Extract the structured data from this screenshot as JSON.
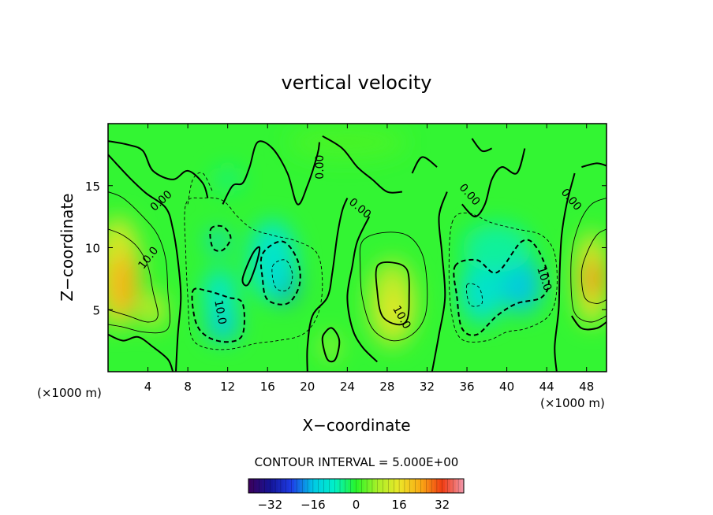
{
  "chart_data": {
    "type": "contour",
    "title": "vertical velocity",
    "xlabel": "X−coordinate",
    "ylabel": "Z−coordinate",
    "x_unit_label": "(×1000 m)",
    "z_unit_label": "(×1000 m)",
    "xlim": [
      0,
      50
    ],
    "zlim": [
      0,
      20
    ],
    "x_ticks": [
      4,
      8,
      12,
      16,
      20,
      24,
      28,
      32,
      36,
      40,
      44,
      48
    ],
    "z_ticks": [
      5,
      10,
      15
    ],
    "contour_interval_text": "CONTOUR INTERVAL = 5.000E+00",
    "contour_labels": [
      {
        "text": "0.00",
        "x": 5.3,
        "z": 13.8,
        "rot": 42
      },
      {
        "text": "0.00",
        "x": 21.2,
        "z": 16.5,
        "rot": 90
      },
      {
        "text": "0.00",
        "x": 25.3,
        "z": 13.2,
        "rot": -40
      },
      {
        "text": "0.00",
        "x": 36.3,
        "z": 14.3,
        "rot": -48
      },
      {
        "text": "0.00",
        "x": 46.5,
        "z": 13.9,
        "rot": -50
      },
      {
        "text": "10.0",
        "x": 4.0,
        "z": 9.2,
        "rot": 52
      },
      {
        "text": "10.0",
        "x": 11.3,
        "z": 4.8,
        "rot": -80
      },
      {
        "text": "10.0",
        "x": 29.5,
        "z": 4.4,
        "rot": -60
      },
      {
        "text": "10.0",
        "x": 43.8,
        "z": 7.5,
        "rot": -72
      }
    ],
    "colorbar": {
      "range": [
        -40,
        40
      ],
      "ticks": [
        -32,
        -16,
        0,
        16,
        32
      ],
      "tick_labels": [
        "−32",
        "−16",
        "0",
        "16",
        "32"
      ]
    },
    "features": [
      {
        "type": "updraft",
        "x": 1.5,
        "z": 7.5,
        "w": 25
      },
      {
        "type": "downdraft",
        "x": 11.5,
        "z": 4.0,
        "w": -15
      },
      {
        "type": "downdraft",
        "x": 17.5,
        "z": 7.5,
        "w": -22
      },
      {
        "type": "downdraft",
        "x": 11.0,
        "z": 10.5,
        "w": -12
      },
      {
        "type": "updraft",
        "x": 28.5,
        "z": 5.5,
        "w": 14
      },
      {
        "type": "updraft",
        "x": 22.3,
        "z": 2.0,
        "w": 10
      },
      {
        "type": "downdraft",
        "x": 37.5,
        "z": 6.5,
        "w": -13
      },
      {
        "type": "downdraft",
        "x": 41.5,
        "z": 7.0,
        "w": -16
      },
      {
        "type": "updraft",
        "x": 48.5,
        "z": 7.5,
        "w": 24
      }
    ]
  }
}
